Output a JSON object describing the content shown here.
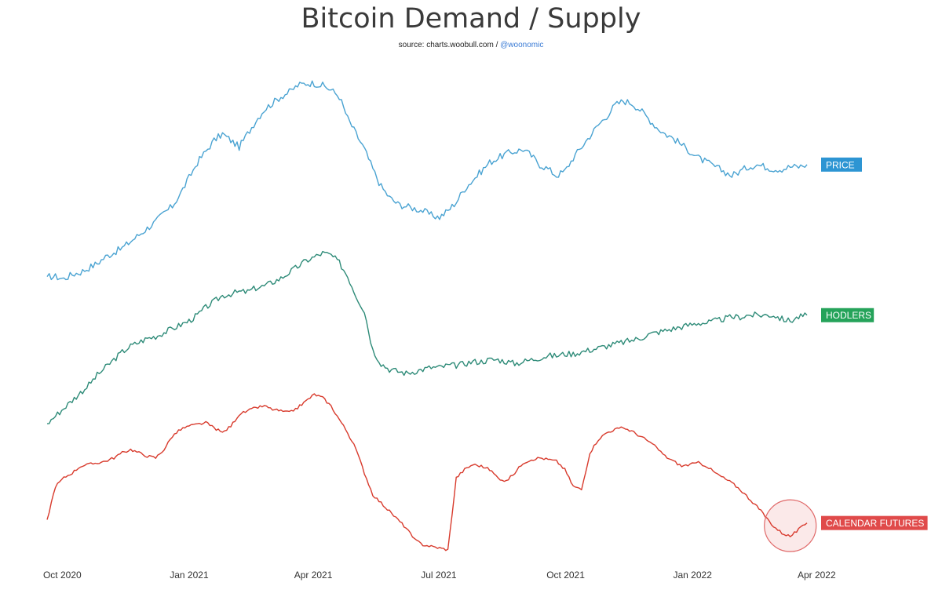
{
  "title": "Bitcoin Demand / Supply",
  "subtitle": {
    "source_label": "source: charts.woobull.com / ",
    "handle": "@woonomic"
  },
  "chart_data": {
    "type": "line",
    "title": "Bitcoin Demand / Supply",
    "xlabel": "",
    "ylabel": "",
    "x_start": "2020-09-20",
    "x_end": "2022-03-25",
    "x_ticks": [
      "Oct 2020",
      "Jan 2021",
      "Apr 2021",
      "Jul 2021",
      "Oct 2021",
      "Jan 2022",
      "Apr 2022"
    ],
    "grid": false,
    "note": "Series values are relative (normalized 0-100 within each series' band); y axis is unlabeled in the original.",
    "series": [
      {
        "name": "PRICE",
        "color": "#4aa3d2",
        "tag_color": "#2d95d3",
        "values": [
          8,
          8,
          7,
          9,
          10,
          12,
          14,
          17,
          19,
          21,
          24,
          27,
          30,
          33,
          37,
          40,
          46,
          53,
          60,
          65,
          70,
          73,
          70,
          67,
          73,
          79,
          84,
          87,
          90,
          92,
          95,
          96,
          96,
          95,
          93,
          90,
          80,
          73,
          66,
          57,
          49,
          44,
          41,
          40,
          39,
          38,
          36,
          35,
          38,
          42,
          48,
          52,
          56,
          60,
          62,
          64,
          65,
          66,
          63,
          59,
          57,
          54,
          56,
          62,
          67,
          72,
          77,
          81,
          86,
          88,
          87,
          84,
          80,
          76,
          73,
          71,
          68,
          65,
          62,
          60,
          58,
          56,
          54,
          56,
          58,
          59,
          58,
          57,
          57,
          58,
          58,
          59
        ]
      },
      {
        "name": "HODLERS",
        "color": "#2e8b78",
        "tag_color": "#25a35a",
        "values": [
          2,
          6,
          10,
          14,
          18,
          22,
          27,
          31,
          35,
          39,
          42,
          44,
          46,
          47,
          49,
          51,
          53,
          55,
          58,
          62,
          65,
          68,
          69,
          70,
          70,
          72,
          73,
          75,
          77,
          80,
          83,
          86,
          88,
          90,
          89,
          85,
          78,
          68,
          60,
          40,
          33,
          30,
          29,
          28,
          29,
          30,
          31,
          31,
          32,
          32,
          33,
          34,
          34,
          35,
          35,
          34,
          33,
          34,
          35,
          36,
          37,
          37,
          38,
          38,
          39,
          40,
          41,
          42,
          43,
          44,
          45,
          46,
          48,
          49,
          50,
          51,
          52,
          53,
          54,
          54,
          55,
          56,
          57,
          57,
          58,
          58,
          58,
          58,
          56,
          55,
          57,
          58
        ]
      },
      {
        "name": "CALENDAR FUTURES",
        "color": "#d83a2c",
        "tag_color": "#e04a4a",
        "values": [
          20,
          40,
          45,
          48,
          52,
          53,
          54,
          55,
          57,
          60,
          62,
          60,
          58,
          57,
          62,
          70,
          74,
          76,
          77,
          78,
          75,
          72,
          76,
          83,
          85,
          87,
          88,
          86,
          85,
          84,
          87,
          91,
          95,
          93,
          88,
          80,
          72,
          62,
          48,
          35,
          30,
          25,
          20,
          15,
          8,
          5,
          4,
          3,
          2,
          45,
          50,
          53,
          52,
          50,
          45,
          43,
          48,
          54,
          56,
          57,
          56,
          55,
          50,
          40,
          38,
          60,
          68,
          72,
          74,
          75,
          73,
          70,
          67,
          63,
          58,
          55,
          52,
          53,
          54,
          52,
          48,
          45,
          42,
          38,
          33,
          28,
          22,
          16,
          12,
          10,
          14,
          18
        ]
      }
    ],
    "annotations": [
      {
        "type": "circle-highlight",
        "series": "CALENDAR FUTURES",
        "where": "most recent low (Mar 2022)"
      }
    ]
  }
}
